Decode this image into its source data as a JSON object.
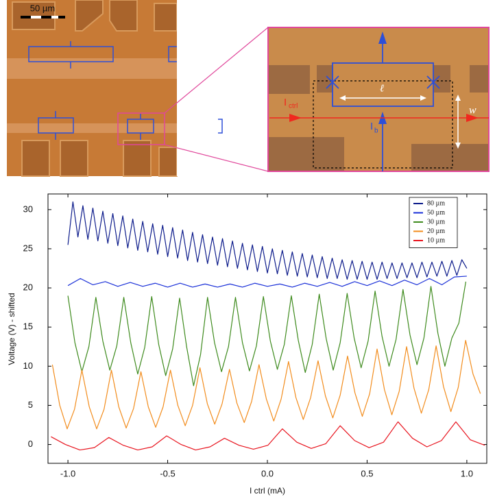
{
  "micrograph": {
    "scale_bar": "50 µm",
    "i_ctrl": "I",
    "i_ctrl_sub": "ctrl",
    "i_b": "I",
    "i_b_sub": "b",
    "length": "ℓ",
    "width": "w"
  },
  "chart_data": {
    "type": "line",
    "ylabel": "Voltage (V) - shifted",
    "xlabel": "I ctrl (mA)",
    "xlim": [
      -1.1,
      1.1
    ],
    "ylim": [
      -2.4,
      32
    ],
    "xticks": [
      {
        "value": -1,
        "label": "-1.0"
      },
      {
        "value": -0.5,
        "label": "-0.5"
      },
      {
        "value": 0,
        "label": "0.0"
      },
      {
        "value": 0.5,
        "label": "0.5"
      },
      {
        "value": 1,
        "label": "1.0"
      }
    ],
    "yticks": [
      0,
      5,
      10,
      15,
      20,
      25,
      30
    ],
    "legend": "upper right",
    "series": [
      {
        "name": "80 µm",
        "color": "#0b1a8a",
        "x": [
          -1,
          -0.975,
          -0.95,
          -0.925,
          -0.9,
          -0.875,
          -0.85,
          -0.825,
          -0.8,
          -0.775,
          -0.75,
          -0.725,
          -0.7,
          -0.675,
          -0.65,
          -0.625,
          -0.6,
          -0.575,
          -0.55,
          -0.525,
          -0.5,
          -0.475,
          -0.45,
          -0.425,
          -0.4,
          -0.375,
          -0.35,
          -0.325,
          -0.3,
          -0.275,
          -0.25,
          -0.225,
          -0.2,
          -0.175,
          -0.15,
          -0.125,
          -0.1,
          -0.075,
          -0.05,
          -0.025,
          0,
          0.025,
          0.05,
          0.075,
          0.1,
          0.125,
          0.15,
          0.175,
          0.2,
          0.225,
          0.25,
          0.275,
          0.3,
          0.325,
          0.35,
          0.375,
          0.4,
          0.425,
          0.45,
          0.475,
          0.5,
          0.525,
          0.55,
          0.575,
          0.6,
          0.625,
          0.65,
          0.675,
          0.7,
          0.725,
          0.75,
          0.775,
          0.8,
          0.825,
          0.85,
          0.875,
          0.9,
          0.925,
          0.95,
          0.975,
          1
        ],
        "values": [
          25.5,
          31,
          26.5,
          30.5,
          26.2,
          30.2,
          26,
          29.8,
          25.7,
          29.5,
          25.4,
          29.2,
          25.1,
          28.8,
          24.8,
          28.5,
          24.6,
          28.2,
          24.3,
          28,
          24,
          27.7,
          23.8,
          27.4,
          23.5,
          27.1,
          23.3,
          26.8,
          23.1,
          26.5,
          22.9,
          26.3,
          22.7,
          26,
          22.5,
          25.7,
          22.3,
          25.5,
          22.1,
          25.3,
          21.9,
          25,
          21.8,
          24.8,
          21.6,
          24.6,
          21.5,
          24.4,
          21.4,
          24.2,
          21.3,
          24,
          21.2,
          23.8,
          21.2,
          23.6,
          21.1,
          23.5,
          21.1,
          23.4,
          21.1,
          23.3,
          21.1,
          23.3,
          21.2,
          23.2,
          21.2,
          23.2,
          21.3,
          23.2,
          21.3,
          23.3,
          21.4,
          23.3,
          21.5,
          23.4,
          21.5,
          23.5,
          21.6,
          23.6,
          22.5
        ]
      },
      {
        "name": "50 µm",
        "color": "#1a30d8",
        "x": [
          -1,
          -0.9375,
          -0.875,
          -0.8125,
          -0.75,
          -0.6875,
          -0.625,
          -0.5625,
          -0.5,
          -0.4375,
          -0.375,
          -0.3125,
          -0.25,
          -0.1875,
          -0.125,
          -0.0625,
          0,
          0.0625,
          0.125,
          0.1875,
          0.25,
          0.3125,
          0.375,
          0.4375,
          0.5,
          0.5625,
          0.625,
          0.6875,
          0.75,
          0.8125,
          0.875,
          0.9375,
          1
        ],
        "values": [
          20.3,
          21.2,
          20.4,
          20.8,
          20.2,
          20.7,
          20.2,
          20.6,
          20.1,
          20.6,
          20.1,
          20.5,
          20.1,
          20.5,
          20.1,
          20.6,
          20.2,
          20.5,
          20.1,
          20.6,
          20.2,
          20.7,
          20.2,
          20.8,
          20.3,
          20.9,
          20.3,
          21,
          20.4,
          21.2,
          20.4,
          21.4,
          21.5
        ]
      },
      {
        "name": "30 µm",
        "color": "#3d8a1c",
        "x": [
          -1,
          -0.965,
          -0.93,
          -0.895,
          -0.86,
          -0.825,
          -0.79,
          -0.755,
          -0.72,
          -0.685,
          -0.65,
          -0.615,
          -0.58,
          -0.545,
          -0.51,
          -0.475,
          -0.44,
          -0.405,
          -0.37,
          -0.335,
          -0.3,
          -0.265,
          -0.23,
          -0.195,
          -0.16,
          -0.125,
          -0.09,
          -0.055,
          -0.02,
          0.015,
          0.05,
          0.085,
          0.12,
          0.155,
          0.19,
          0.225,
          0.26,
          0.295,
          0.33,
          0.365,
          0.4,
          0.435,
          0.47,
          0.505,
          0.54,
          0.575,
          0.61,
          0.645,
          0.68,
          0.715,
          0.75,
          0.785,
          0.82,
          0.855,
          0.89,
          0.925,
          0.96,
          0.995
        ],
        "values": [
          19,
          13,
          9.3,
          12.5,
          18.8,
          13.2,
          9.5,
          12.6,
          18.8,
          13,
          9,
          12.4,
          18.9,
          12.8,
          8.8,
          12.2,
          18.7,
          12.5,
          7.5,
          11.5,
          18.8,
          13,
          9.3,
          12.5,
          18.8,
          13,
          9.4,
          12.6,
          18.9,
          13.2,
          9.6,
          12.8,
          19,
          13.3,
          9.2,
          12.8,
          19.2,
          13.5,
          9.5,
          13,
          19.3,
          13.6,
          9.8,
          13.2,
          19.6,
          13.8,
          10,
          13.4,
          19.8,
          14,
          10.2,
          13.6,
          20.2,
          14.2,
          10,
          13.6,
          15.5,
          20.8
        ]
      },
      {
        "name": "20 µm",
        "color": "#f28c1c",
        "x": [
          -1.078,
          -1.041,
          -1.004,
          -0.967,
          -0.93,
          -0.893,
          -0.856,
          -0.819,
          -0.782,
          -0.745,
          -0.708,
          -0.671,
          -0.634,
          -0.597,
          -0.56,
          -0.523,
          -0.486,
          -0.449,
          -0.412,
          -0.375,
          -0.338,
          -0.301,
          -0.264,
          -0.227,
          -0.19,
          -0.153,
          -0.116,
          -0.079,
          -0.042,
          -0.005,
          0.032,
          0.069,
          0.106,
          0.143,
          0.18,
          0.217,
          0.254,
          0.291,
          0.328,
          0.365,
          0.402,
          0.439,
          0.476,
          0.513,
          0.55,
          0.587,
          0.624,
          0.661,
          0.698,
          0.735,
          0.772,
          0.809,
          0.846,
          0.883,
          0.92,
          0.957,
          0.994,
          1.031,
          1.068
        ],
        "values": [
          10.2,
          5,
          2,
          4.5,
          9.5,
          4.8,
          2,
          4.5,
          9.5,
          4.8,
          2.1,
          4.6,
          9.3,
          4.8,
          2.2,
          4.8,
          9.5,
          5,
          2.4,
          5,
          9.8,
          5.2,
          2.6,
          5.2,
          9.6,
          5.3,
          2.8,
          5.5,
          10.2,
          5.8,
          3,
          5.8,
          10.6,
          6,
          3.2,
          6,
          10.7,
          6.2,
          3.4,
          6.3,
          11.3,
          6.6,
          3.6,
          6.5,
          12.2,
          7,
          3.8,
          6.8,
          12.5,
          7.2,
          4,
          7,
          12.6,
          7.4,
          4.2,
          7.3,
          13.3,
          9,
          6.5
        ]
      },
      {
        "name": "10 µm",
        "color": "#e8141e",
        "x": [
          -1.085,
          -1.0125,
          -0.94,
          -0.8675,
          -0.795,
          -0.7225,
          -0.65,
          -0.5775,
          -0.505,
          -0.4325,
          -0.36,
          -0.2875,
          -0.215,
          -0.1425,
          -0.07,
          0.0025,
          0.075,
          0.1475,
          0.22,
          0.2925,
          0.365,
          0.4375,
          0.51,
          0.5825,
          0.655,
          0.7275,
          0.8,
          0.8725,
          0.945,
          1.0175,
          1.09
        ],
        "values": [
          1,
          0,
          -0.7,
          -0.4,
          0.9,
          -0.1,
          -0.7,
          -0.3,
          1.1,
          0,
          -0.7,
          -0.3,
          0.8,
          -0.1,
          -0.6,
          -0.1,
          2,
          0.3,
          -0.5,
          0.1,
          2.4,
          0.5,
          -0.4,
          0.3,
          2.9,
          0.8,
          -0.3,
          0.5,
          2.9,
          0.6,
          -0.1
        ]
      }
    ]
  }
}
